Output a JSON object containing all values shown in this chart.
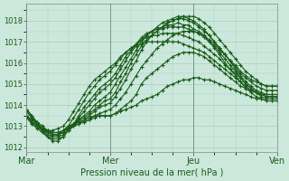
{
  "bg_color": "#cce8dc",
  "grid_color": "#aaccbb",
  "line_color": "#1a5c1a",
  "xlabel": "Pression niveau de la mer( hPa )",
  "ylim": [
    1011.8,
    1018.8
  ],
  "yticks": [
    1012,
    1013,
    1014,
    1015,
    1016,
    1017,
    1018
  ],
  "xtick_labels": [
    "Mar",
    "Mer",
    "Jeu",
    "Ven"
  ],
  "xtick_positions": [
    0,
    96,
    192,
    288
  ],
  "xlim": [
    0,
    288
  ],
  "series": [
    {
      "x": [
        0,
        6,
        12,
        18,
        24,
        30,
        36,
        42,
        48,
        54,
        60,
        66,
        72,
        78,
        84,
        90,
        96,
        102,
        108,
        114,
        120,
        126,
        132,
        138,
        144,
        150,
        156,
        162,
        168,
        174,
        180,
        186,
        192,
        198,
        204,
        210,
        216,
        222,
        228,
        234,
        240,
        246,
        252,
        258,
        264,
        270,
        276,
        282,
        288
      ],
      "y": [
        1013.8,
        1013.5,
        1013.2,
        1013.0,
        1012.8,
        1012.7,
        1012.7,
        1012.8,
        1013.0,
        1013.1,
        1013.2,
        1013.3,
        1013.4,
        1013.5,
        1013.5,
        1013.5,
        1013.5,
        1013.6,
        1013.7,
        1013.8,
        1013.9,
        1014.0,
        1014.2,
        1014.3,
        1014.4,
        1014.5,
        1014.7,
        1014.9,
        1015.0,
        1015.1,
        1015.2,
        1015.2,
        1015.3,
        1015.3,
        1015.2,
        1015.2,
        1015.1,
        1015.0,
        1014.9,
        1014.8,
        1014.7,
        1014.6,
        1014.5,
        1014.4,
        1014.3,
        1014.3,
        1014.2,
        1014.2,
        1014.2
      ]
    },
    {
      "x": [
        0,
        6,
        12,
        18,
        24,
        30,
        36,
        42,
        48,
        54,
        60,
        66,
        72,
        78,
        84,
        90,
        96,
        102,
        108,
        114,
        120,
        126,
        132,
        138,
        144,
        150,
        156,
        162,
        168,
        174,
        180,
        186,
        192,
        198,
        204,
        210,
        216,
        222,
        228,
        234,
        240,
        246,
        252,
        258,
        264,
        270,
        276,
        282,
        288
      ],
      "y": [
        1013.8,
        1013.5,
        1013.1,
        1012.9,
        1012.7,
        1012.7,
        1012.7,
        1012.8,
        1013.0,
        1013.1,
        1013.2,
        1013.2,
        1013.3,
        1013.4,
        1013.5,
        1013.5,
        1013.5,
        1013.6,
        1013.8,
        1014.0,
        1014.2,
        1014.5,
        1015.0,
        1015.3,
        1015.5,
        1015.7,
        1015.9,
        1016.1,
        1016.3,
        1016.4,
        1016.5,
        1016.5,
        1016.5,
        1016.4,
        1016.3,
        1016.1,
        1015.9,
        1015.7,
        1015.5,
        1015.3,
        1015.1,
        1014.9,
        1014.8,
        1014.7,
        1014.6,
        1014.5,
        1014.5,
        1014.5,
        1014.5
      ]
    },
    {
      "x": [
        0,
        6,
        12,
        18,
        24,
        30,
        36,
        42,
        48,
        54,
        60,
        66,
        72,
        78,
        84,
        90,
        96,
        102,
        108,
        114,
        120,
        126,
        132,
        138,
        144,
        150,
        156,
        162,
        168,
        174,
        180,
        186,
        192,
        198,
        204,
        210,
        216,
        222,
        228,
        234,
        240,
        246,
        252,
        258,
        264,
        270,
        276,
        282,
        288
      ],
      "y": [
        1013.7,
        1013.4,
        1013.1,
        1012.9,
        1012.7,
        1012.6,
        1012.6,
        1012.7,
        1012.9,
        1013.0,
        1013.1,
        1013.2,
        1013.3,
        1013.5,
        1013.6,
        1013.7,
        1013.8,
        1014.0,
        1014.3,
        1014.6,
        1015.0,
        1015.4,
        1015.8,
        1016.1,
        1016.4,
        1016.7,
        1016.9,
        1017.1,
        1017.3,
        1017.4,
        1017.5,
        1017.5,
        1017.5,
        1017.4,
        1017.3,
        1017.1,
        1016.9,
        1016.6,
        1016.4,
        1016.1,
        1015.9,
        1015.6,
        1015.4,
        1015.2,
        1015.1,
        1015.0,
        1014.9,
        1014.9,
        1014.9
      ]
    },
    {
      "x": [
        0,
        6,
        12,
        18,
        24,
        30,
        36,
        42,
        48,
        54,
        60,
        66,
        72,
        78,
        84,
        90,
        96,
        102,
        108,
        114,
        120,
        126,
        132,
        138,
        144,
        150,
        156,
        162,
        168,
        174,
        180,
        186,
        192,
        198,
        204,
        210,
        216,
        222,
        228,
        234,
        240,
        246,
        252,
        258,
        264,
        270,
        276,
        282,
        288
      ],
      "y": [
        1013.5,
        1013.3,
        1013.1,
        1012.9,
        1012.7,
        1012.6,
        1012.6,
        1012.7,
        1012.9,
        1013.0,
        1013.2,
        1013.3,
        1013.5,
        1013.7,
        1013.9,
        1014.0,
        1014.1,
        1014.4,
        1014.8,
        1015.2,
        1015.7,
        1016.1,
        1016.6,
        1017.0,
        1017.3,
        1017.5,
        1017.7,
        1017.9,
        1018.0,
        1018.1,
        1018.1,
        1018.0,
        1017.9,
        1017.7,
        1017.5,
        1017.3,
        1017.0,
        1016.7,
        1016.4,
        1016.1,
        1015.8,
        1015.5,
        1015.3,
        1015.1,
        1014.9,
        1014.8,
        1014.7,
        1014.7,
        1014.7
      ]
    },
    {
      "x": [
        0,
        6,
        12,
        18,
        24,
        30,
        36,
        42,
        48,
        54,
        60,
        66,
        72,
        78,
        84,
        90,
        96,
        102,
        108,
        114,
        120,
        126,
        132,
        138,
        144,
        150,
        156,
        162,
        168,
        174,
        180,
        186,
        192,
        198,
        204,
        210,
        216,
        222,
        228,
        234,
        240,
        246,
        252,
        258,
        264,
        270,
        276,
        282,
        288
      ],
      "y": [
        1013.5,
        1013.2,
        1013.0,
        1012.8,
        1012.7,
        1012.6,
        1012.6,
        1012.7,
        1012.9,
        1013.1,
        1013.3,
        1013.4,
        1013.6,
        1013.8,
        1014.0,
        1014.2,
        1014.3,
        1014.6,
        1015.1,
        1015.5,
        1016.0,
        1016.4,
        1016.8,
        1017.1,
        1017.3,
        1017.5,
        1017.7,
        1017.9,
        1018.0,
        1018.1,
        1018.2,
        1018.2,
        1018.2,
        1018.1,
        1017.9,
        1017.7,
        1017.4,
        1017.1,
        1016.8,
        1016.5,
        1016.2,
        1015.9,
        1015.6,
        1015.4,
        1015.2,
        1015.0,
        1014.9,
        1014.9,
        1014.9
      ]
    },
    {
      "x": [
        0,
        6,
        12,
        18,
        24,
        30,
        36,
        42,
        48,
        54,
        60,
        66,
        72,
        78,
        84,
        90,
        96,
        102,
        108,
        114,
        120,
        126,
        132,
        138,
        144,
        150,
        156,
        162,
        168,
        174,
        180,
        186,
        192,
        198,
        204,
        210,
        216,
        222,
        228,
        234,
        240,
        246,
        252,
        258,
        264,
        270,
        276,
        282,
        288
      ],
      "y": [
        1013.5,
        1013.2,
        1013.0,
        1012.8,
        1012.6,
        1012.5,
        1012.5,
        1012.6,
        1012.8,
        1013.0,
        1013.3,
        1013.5,
        1013.7,
        1014.0,
        1014.2,
        1014.4,
        1014.6,
        1015.0,
        1015.4,
        1015.8,
        1016.2,
        1016.6,
        1017.0,
        1017.3,
        1017.5,
        1017.7,
        1017.9,
        1018.0,
        1018.1,
        1018.2,
        1018.2,
        1018.1,
        1018.0,
        1017.8,
        1017.6,
        1017.3,
        1017.0,
        1016.7,
        1016.4,
        1016.1,
        1015.7,
        1015.4,
        1015.1,
        1014.9,
        1014.7,
        1014.6,
        1014.5,
        1014.5,
        1014.5
      ]
    },
    {
      "x": [
        0,
        6,
        12,
        18,
        24,
        30,
        36,
        42,
        48,
        54,
        60,
        66,
        72,
        78,
        84,
        90,
        96,
        102,
        108,
        114,
        120,
        126,
        132,
        138,
        144,
        150,
        156,
        162,
        168,
        174,
        180,
        186,
        192,
        198,
        204,
        210,
        216,
        222,
        228,
        234,
        240,
        246,
        252,
        258,
        264,
        270,
        276,
        282,
        288
      ],
      "y": [
        1013.4,
        1013.1,
        1012.9,
        1012.7,
        1012.5,
        1012.4,
        1012.4,
        1012.5,
        1012.8,
        1013.1,
        1013.4,
        1013.7,
        1014.0,
        1014.3,
        1014.6,
        1014.8,
        1015.0,
        1015.3,
        1015.7,
        1016.1,
        1016.5,
        1016.8,
        1017.1,
        1017.3,
        1017.5,
        1017.6,
        1017.7,
        1017.8,
        1017.8,
        1017.9,
        1017.8,
        1017.8,
        1017.6,
        1017.5,
        1017.3,
        1017.0,
        1016.7,
        1016.4,
        1016.0,
        1015.7,
        1015.4,
        1015.1,
        1014.8,
        1014.6,
        1014.4,
        1014.3,
        1014.2,
        1014.2,
        1014.2
      ]
    },
    {
      "x": [
        0,
        6,
        12,
        18,
        24,
        30,
        36,
        42,
        48,
        54,
        60,
        66,
        72,
        78,
        84,
        90,
        96,
        102,
        108,
        114,
        120,
        126,
        132,
        138,
        144,
        150,
        156,
        162,
        168,
        174,
        180,
        186,
        192,
        198,
        204,
        210,
        216,
        222,
        228,
        234,
        240,
        246,
        252,
        258,
        264,
        270,
        276,
        282,
        288
      ],
      "y": [
        1013.5,
        1013.2,
        1013.0,
        1012.8,
        1012.5,
        1012.3,
        1012.3,
        1012.5,
        1012.8,
        1013.1,
        1013.5,
        1013.9,
        1014.2,
        1014.5,
        1014.8,
        1015.0,
        1015.2,
        1015.5,
        1015.9,
        1016.3,
        1016.6,
        1016.9,
        1017.2,
        1017.4,
        1017.5,
        1017.6,
        1017.6,
        1017.7,
        1017.7,
        1017.7,
        1017.7,
        1017.6,
        1017.5,
        1017.4,
        1017.2,
        1017.0,
        1016.8,
        1016.5,
        1016.2,
        1015.9,
        1015.6,
        1015.3,
        1015.0,
        1014.8,
        1014.6,
        1014.4,
        1014.3,
        1014.3,
        1014.3
      ]
    },
    {
      "x": [
        0,
        6,
        12,
        18,
        24,
        30,
        36,
        42,
        48,
        54,
        60,
        66,
        72,
        78,
        84,
        90,
        96,
        102,
        108,
        114,
        120,
        126,
        132,
        138,
        144,
        150,
        156,
        162,
        168,
        174,
        180,
        186,
        192,
        198,
        204,
        210,
        216,
        222,
        228,
        234,
        240,
        246,
        252,
        258,
        264,
        270,
        276,
        282,
        288
      ],
      "y": [
        1013.7,
        1013.4,
        1013.2,
        1013.0,
        1012.8,
        1012.7,
        1012.7,
        1012.7,
        1013.0,
        1013.4,
        1013.8,
        1014.2,
        1014.6,
        1014.9,
        1015.2,
        1015.4,
        1015.6,
        1015.9,
        1016.2,
        1016.5,
        1016.7,
        1016.9,
        1017.1,
        1017.2,
        1017.3,
        1017.3,
        1017.4,
        1017.4,
        1017.4,
        1017.4,
        1017.3,
        1017.2,
        1017.1,
        1017.0,
        1016.8,
        1016.6,
        1016.4,
        1016.2,
        1015.9,
        1015.7,
        1015.5,
        1015.3,
        1015.0,
        1014.8,
        1014.6,
        1014.5,
        1014.4,
        1014.4,
        1014.4
      ]
    },
    {
      "x": [
        0,
        6,
        12,
        18,
        24,
        30,
        36,
        42,
        48,
        54,
        60,
        66,
        72,
        78,
        84,
        90,
        96,
        102,
        108,
        114,
        120,
        126,
        132,
        138,
        144,
        150,
        156,
        162,
        168,
        174,
        180,
        186,
        192,
        198,
        204,
        210,
        216,
        222,
        228,
        234,
        240,
        246,
        252,
        258,
        264,
        270,
        276,
        282,
        288
      ],
      "y": [
        1013.5,
        1013.2,
        1013.0,
        1012.9,
        1012.8,
        1012.8,
        1012.9,
        1013.0,
        1013.3,
        1013.7,
        1014.1,
        1014.5,
        1014.9,
        1015.2,
        1015.4,
        1015.6,
        1015.8,
        1016.0,
        1016.3,
        1016.5,
        1016.7,
        1016.8,
        1016.9,
        1017.0,
        1017.0,
        1017.0,
        1017.0,
        1017.0,
        1017.0,
        1017.0,
        1016.9,
        1016.8,
        1016.7,
        1016.6,
        1016.5,
        1016.3,
        1016.1,
        1015.9,
        1015.7,
        1015.5,
        1015.3,
        1015.1,
        1014.9,
        1014.7,
        1014.6,
        1014.5,
        1014.4,
        1014.4,
        1014.4
      ]
    }
  ]
}
